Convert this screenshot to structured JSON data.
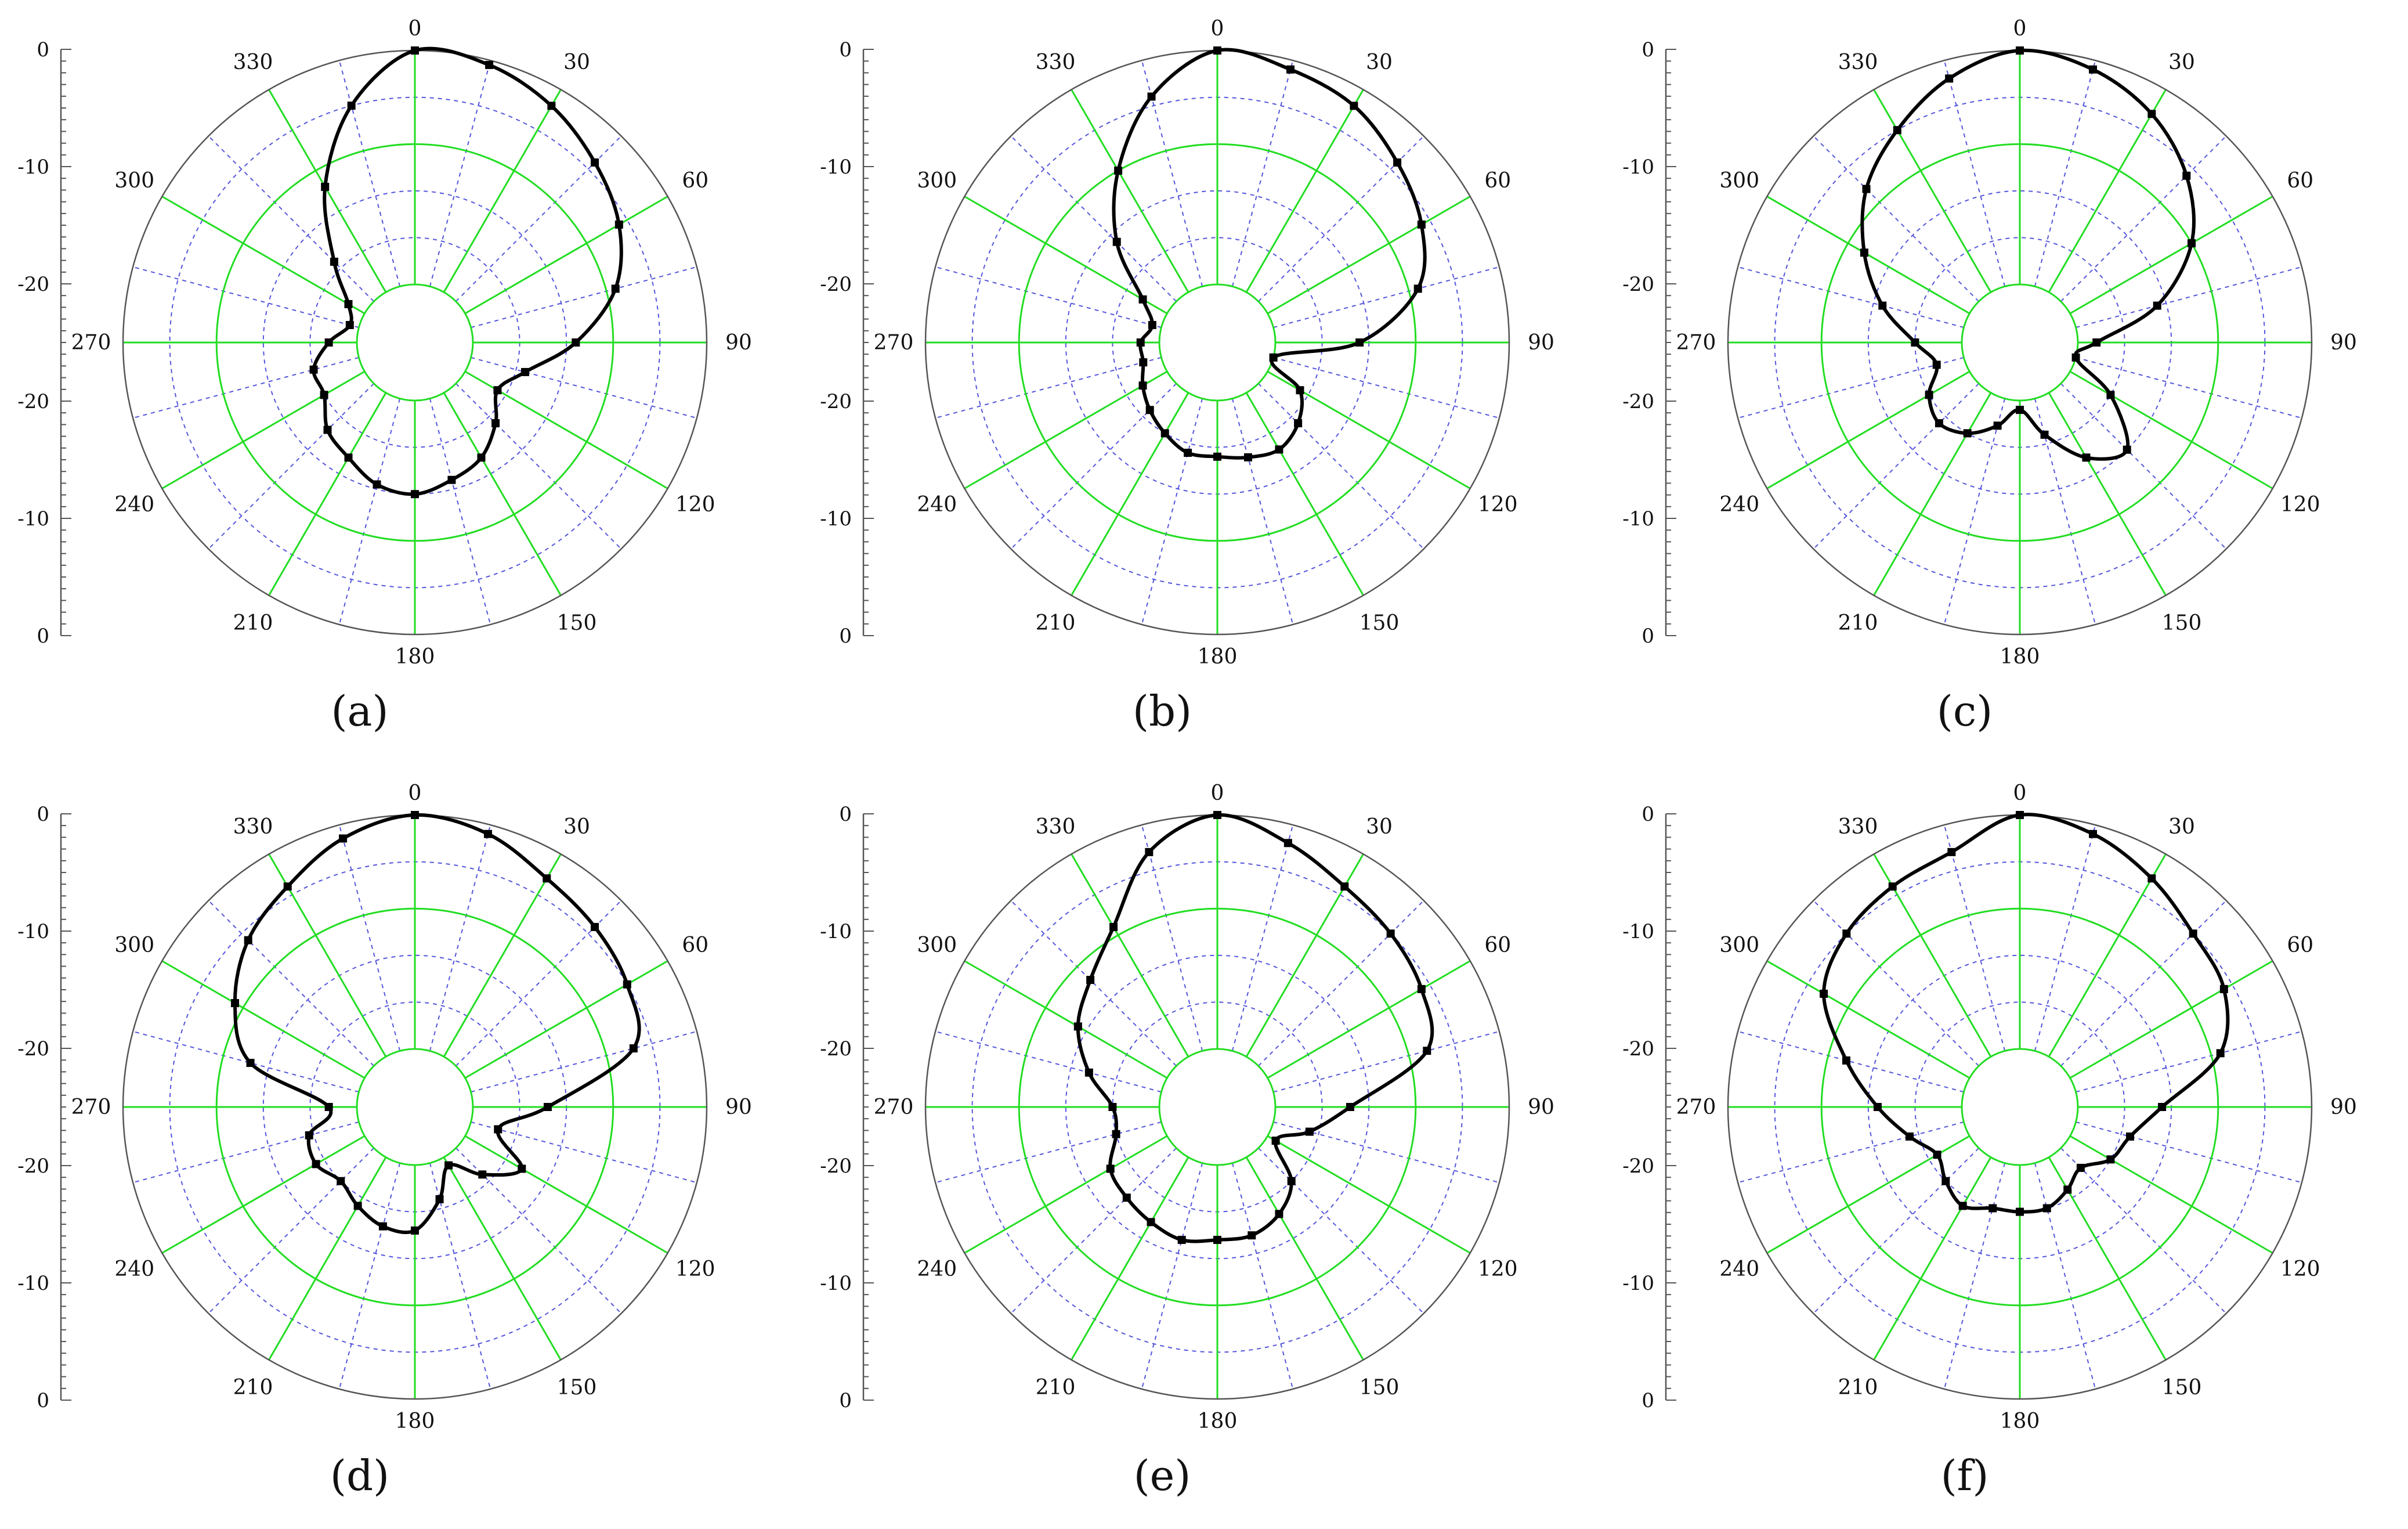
{
  "figure": {
    "angle_tick_labels": [
      "0",
      "30",
      "60",
      "90",
      "120",
      "150",
      "180",
      "210",
      "240",
      "270",
      "300",
      "330"
    ],
    "radial_scale_labels": [
      "0",
      "-10",
      "-20",
      "-20",
      "-10",
      "0"
    ],
    "colors": {
      "spokes_and_rings": "#22dd22",
      "minor_grid": "#5555dd",
      "outer_circle": "#555555",
      "trace": "#000000",
      "text": "#111111"
    }
  },
  "chart_data": [
    {
      "type": "polar",
      "caption": "(a)",
      "angles_deg": [
        0,
        15,
        30,
        45,
        60,
        75,
        90,
        105,
        120,
        135,
        150,
        165,
        180,
        195,
        210,
        225,
        240,
        255,
        270,
        285,
        300,
        315,
        330,
        345
      ],
      "values_db": [
        0,
        -0.5,
        -2,
        -4,
        -6,
        -9,
        -14,
        -19,
        -21,
        -19,
        -17,
        -16,
        -15,
        -15.5,
        -17,
        -18,
        -20,
        -20,
        -22,
        -24,
        -23,
        -19,
        -12,
        -5
      ],
      "rlim": [
        -25,
        0
      ],
      "angle_ticks_deg": [
        0,
        30,
        60,
        90,
        120,
        150,
        180,
        210,
        240,
        270,
        300,
        330
      ],
      "grid": true
    },
    {
      "type": "polar",
      "caption": "(b)",
      "angles_deg": [
        0,
        15,
        30,
        45,
        60,
        75,
        90,
        105,
        120,
        135,
        150,
        165,
        180,
        195,
        210,
        225,
        240,
        255,
        270,
        285,
        300,
        315,
        330,
        345
      ],
      "values_db": [
        0,
        -1,
        -2,
        -4,
        -6,
        -9,
        -16,
        -25,
        -21,
        -19,
        -18,
        -18.5,
        -19,
        -19,
        -20,
        -21,
        -22,
        -23,
        -23,
        -24,
        -22,
        -16,
        -10,
        -4
      ],
      "rlim": [
        -25,
        0
      ],
      "angle_ticks_deg": [
        0,
        30,
        60,
        90,
        120,
        150,
        180,
        210,
        240,
        270,
        300,
        330
      ],
      "grid": true
    },
    {
      "type": "polar",
      "caption": "(c)",
      "angles_deg": [
        0,
        15,
        30,
        45,
        60,
        75,
        90,
        105,
        120,
        135,
        150,
        165,
        180,
        195,
        210,
        225,
        240,
        255,
        270,
        285,
        300,
        315,
        330,
        345
      ],
      "values_db": [
        0,
        -1,
        -3,
        -6,
        -10,
        -16,
        -23,
        -25,
        -20,
        -15,
        -17,
        -21,
        -24,
        -22,
        -20,
        -19,
        -20,
        -22,
        -20,
        -16,
        -12,
        -8,
        -5,
        -2
      ],
      "rlim": [
        -25,
        0
      ],
      "angle_ticks_deg": [
        0,
        30,
        60,
        90,
        120,
        150,
        180,
        210,
        240,
        270,
        300,
        330
      ],
      "grid": true
    },
    {
      "type": "polar",
      "caption": "(d)",
      "angles_deg": [
        0,
        15,
        30,
        45,
        60,
        75,
        90,
        105,
        120,
        135,
        150,
        165,
        180,
        195,
        210,
        225,
        240,
        255,
        270,
        285,
        300,
        315,
        330,
        345
      ],
      "values_db": [
        0,
        -1,
        -3,
        -4,
        -5,
        -7,
        -17,
        -22,
        -18,
        -21,
        -24,
        -21,
        -18,
        -18,
        -19,
        -20,
        -19,
        -19.5,
        -22,
        -13,
        -9,
        -6,
        -4,
        -1.5
      ],
      "rlim": [
        -25,
        0
      ],
      "angle_ticks_deg": [
        0,
        30,
        60,
        90,
        120,
        150,
        180,
        210,
        240,
        270,
        300,
        330
      ],
      "grid": true
    },
    {
      "type": "polar",
      "caption": "(e)",
      "angles_deg": [
        0,
        15,
        30,
        45,
        60,
        75,
        90,
        105,
        120,
        135,
        150,
        165,
        180,
        195,
        210,
        225,
        240,
        255,
        270,
        285,
        300,
        315,
        330,
        345
      ],
      "values_db": [
        0,
        -2,
        -4,
        -5,
        -6,
        -8,
        -17,
        -21,
        -24,
        -20,
        -18,
        -17,
        -17,
        -16.5,
        -17,
        -17.5,
        -18,
        -20,
        -20,
        -17,
        -14,
        -12,
        -9,
        -3
      ],
      "rlim": [
        -25,
        0
      ],
      "angle_ticks_deg": [
        0,
        30,
        60,
        90,
        120,
        150,
        180,
        210,
        240,
        270,
        300,
        330
      ],
      "grid": true
    },
    {
      "type": "polar",
      "caption": "(f)",
      "angles_deg": [
        0,
        15,
        30,
        45,
        60,
        75,
        90,
        105,
        120,
        135,
        150,
        165,
        180,
        195,
        210,
        225,
        240,
        255,
        270,
        285,
        300,
        315,
        330,
        345
      ],
      "values_db": [
        0,
        -1,
        -3,
        -5,
        -6,
        -9,
        -16,
        -19,
        -20,
        -22,
        -21,
        -20,
        -20,
        -20,
        -19,
        -20,
        -21,
        -19,
        -16,
        -12,
        -7,
        -5,
        -4,
        -3
      ],
      "rlim": [
        -25,
        0
      ],
      "angle_ticks_deg": [
        0,
        30,
        60,
        90,
        120,
        150,
        180,
        210,
        240,
        270,
        300,
        330
      ],
      "grid": true
    }
  ]
}
